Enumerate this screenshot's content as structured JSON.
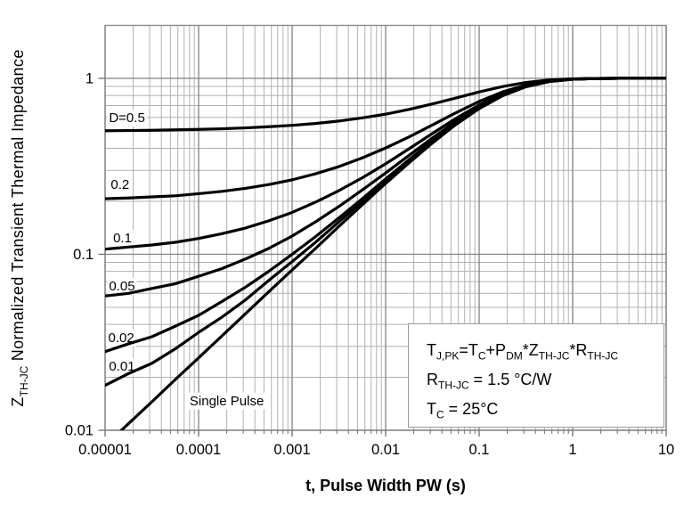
{
  "chart_data": {
    "type": "line",
    "title": "",
    "xlabel": "t, Pulse Width PW (s)",
    "ylabel_parts": [
      {
        "txt": "Z",
        "sub": "TH-JC"
      },
      {
        "txt": " Normalized Transient Thermal Impedance"
      }
    ],
    "x_scale": "log",
    "y_scale": "log",
    "xlim": [
      1e-05,
      10
    ],
    "ylim": [
      0.01,
      2
    ],
    "grid": "major-and-minor",
    "legend_position": "none",
    "x_ticks": [
      {
        "value": 1e-05,
        "label": "0.00001"
      },
      {
        "value": 0.0001,
        "label": "0.0001"
      },
      {
        "value": 0.001,
        "label": "0.001"
      },
      {
        "value": 0.01,
        "label": "0.01"
      },
      {
        "value": 0.1,
        "label": "0.1"
      },
      {
        "value": 1,
        "label": "1"
      },
      {
        "value": 10,
        "label": "10"
      }
    ],
    "y_ticks": [
      {
        "value": 0.01,
        "label": "0.01"
      },
      {
        "value": 0.1,
        "label": "0.1"
      },
      {
        "value": 1,
        "label": "1"
      }
    ],
    "x": [
      1e-05,
      1.78e-05,
      3.16e-05,
      5.62e-05,
      0.0001,
      0.000178,
      0.000316,
      0.000562,
      0.001,
      0.00178,
      0.00316,
      0.00562,
      0.01,
      0.0178,
      0.0316,
      0.0562,
      0.1,
      0.178,
      0.316,
      0.562,
      1,
      1.78,
      3.16,
      5.62,
      10
    ],
    "series": [
      {
        "name": "D=0.5",
        "values": [
          0.504,
          0.505,
          0.507,
          0.51,
          0.513,
          0.517,
          0.523,
          0.531,
          0.541,
          0.554,
          0.572,
          0.596,
          0.626,
          0.666,
          0.715,
          0.773,
          0.837,
          0.898,
          0.948,
          0.98,
          0.994,
          0.999,
          1.0,
          1.0,
          1.0
        ]
      },
      {
        "name": "D=0.2",
        "values": [
          0.207,
          0.209,
          0.212,
          0.215,
          0.221,
          0.228,
          0.237,
          0.249,
          0.265,
          0.287,
          0.315,
          0.353,
          0.402,
          0.465,
          0.543,
          0.637,
          0.739,
          0.837,
          0.917,
          0.967,
          0.991,
          0.998,
          1.0,
          1.0,
          1.0
        ]
      },
      {
        "name": "D=0.1",
        "values": [
          0.107,
          0.11,
          0.113,
          0.117,
          0.123,
          0.131,
          0.141,
          0.155,
          0.173,
          0.198,
          0.23,
          0.272,
          0.327,
          0.398,
          0.486,
          0.591,
          0.706,
          0.817,
          0.906,
          0.963,
          0.99,
          0.998,
          1.0,
          1.0,
          1.0
        ]
      },
      {
        "name": "D=0.05",
        "values": [
          0.058,
          0.06,
          0.064,
          0.068,
          0.075,
          0.083,
          0.094,
          0.108,
          0.127,
          0.153,
          0.187,
          0.232,
          0.29,
          0.365,
          0.458,
          0.568,
          0.69,
          0.807,
          0.901,
          0.961,
          0.989,
          0.998,
          1.0,
          1.0,
          1.0
        ]
      },
      {
        "name": "D=0.02",
        "values": [
          0.028,
          0.031,
          0.034,
          0.039,
          0.045,
          0.054,
          0.065,
          0.08,
          0.1,
          0.126,
          0.161,
          0.207,
          0.268,
          0.345,
          0.441,
          0.555,
          0.68,
          0.8,
          0.898,
          0.96,
          0.989,
          0.998,
          1.0,
          1.0,
          1.0
        ]
      },
      {
        "name": "D=0.01",
        "values": [
          0.018,
          0.021,
          0.024,
          0.029,
          0.036,
          0.044,
          0.055,
          0.071,
          0.091,
          0.117,
          0.153,
          0.199,
          0.26,
          0.338,
          0.435,
          0.55,
          0.677,
          0.799,
          0.897,
          0.96,
          0.989,
          0.998,
          1.0,
          1.0,
          1.0
        ]
      },
      {
        "name": "Single Pulse",
        "values": [
          0.0082,
          0.0109,
          0.0145,
          0.0194,
          0.0258,
          0.0344,
          0.0459,
          0.0612,
          0.0815,
          0.108,
          0.144,
          0.191,
          0.253,
          0.331,
          0.429,
          0.546,
          0.673,
          0.796,
          0.896,
          0.959,
          0.989,
          0.998,
          1.0,
          1.0,
          1.0
        ]
      }
    ],
    "curve_labels": [
      {
        "text": "D=0.5",
        "t": 1.1e-05,
        "z": 0.565,
        "anchor": "start"
      },
      {
        "text": "0.2",
        "t": 1.15e-05,
        "z": 0.235,
        "anchor": "start"
      },
      {
        "text": "0.1",
        "t": 1.22e-05,
        "z": 0.117,
        "anchor": "start"
      },
      {
        "text": "0.05",
        "t": 1.1e-05,
        "z": 0.0625,
        "anchor": "start"
      },
      {
        "text": "0.02",
        "t": 1.08e-05,
        "z": 0.0317,
        "anchor": "start"
      },
      {
        "text": "0.01",
        "t": 1.1e-05,
        "z": 0.0218,
        "anchor": "start"
      },
      {
        "text": "Single Pulse",
        "t": 0.0002,
        "z": 0.0139,
        "anchor": "middle"
      }
    ],
    "annotation": {
      "lines": [
        {
          "parts": [
            {
              "txt": "T",
              "sub": "J,PK"
            },
            {
              "txt": "=T",
              "sub": "C"
            },
            {
              "txt": "+P",
              "sub": "DM"
            },
            {
              "txt": "*Z",
              "sub": "TH-JC"
            },
            {
              "txt": "*R",
              "sub": "TH-JC"
            }
          ]
        },
        {
          "parts": [
            {
              "txt": "R",
              "sub": "TH-JC"
            },
            {
              "txt": " = 1.5 °C/W"
            }
          ]
        },
        {
          "parts": [
            {
              "txt": "T",
              "sub": "C"
            },
            {
              "txt": " = 25°C"
            }
          ]
        }
      ]
    },
    "colors": {
      "curve": "#000000",
      "grid_minor": "#b1b1b1",
      "grid_major": "#8a8a8a",
      "axis_tick": "#6e6e6e",
      "text": "#000000",
      "background": "#ffffff",
      "annotation_border": "#9a9a9a"
    }
  }
}
